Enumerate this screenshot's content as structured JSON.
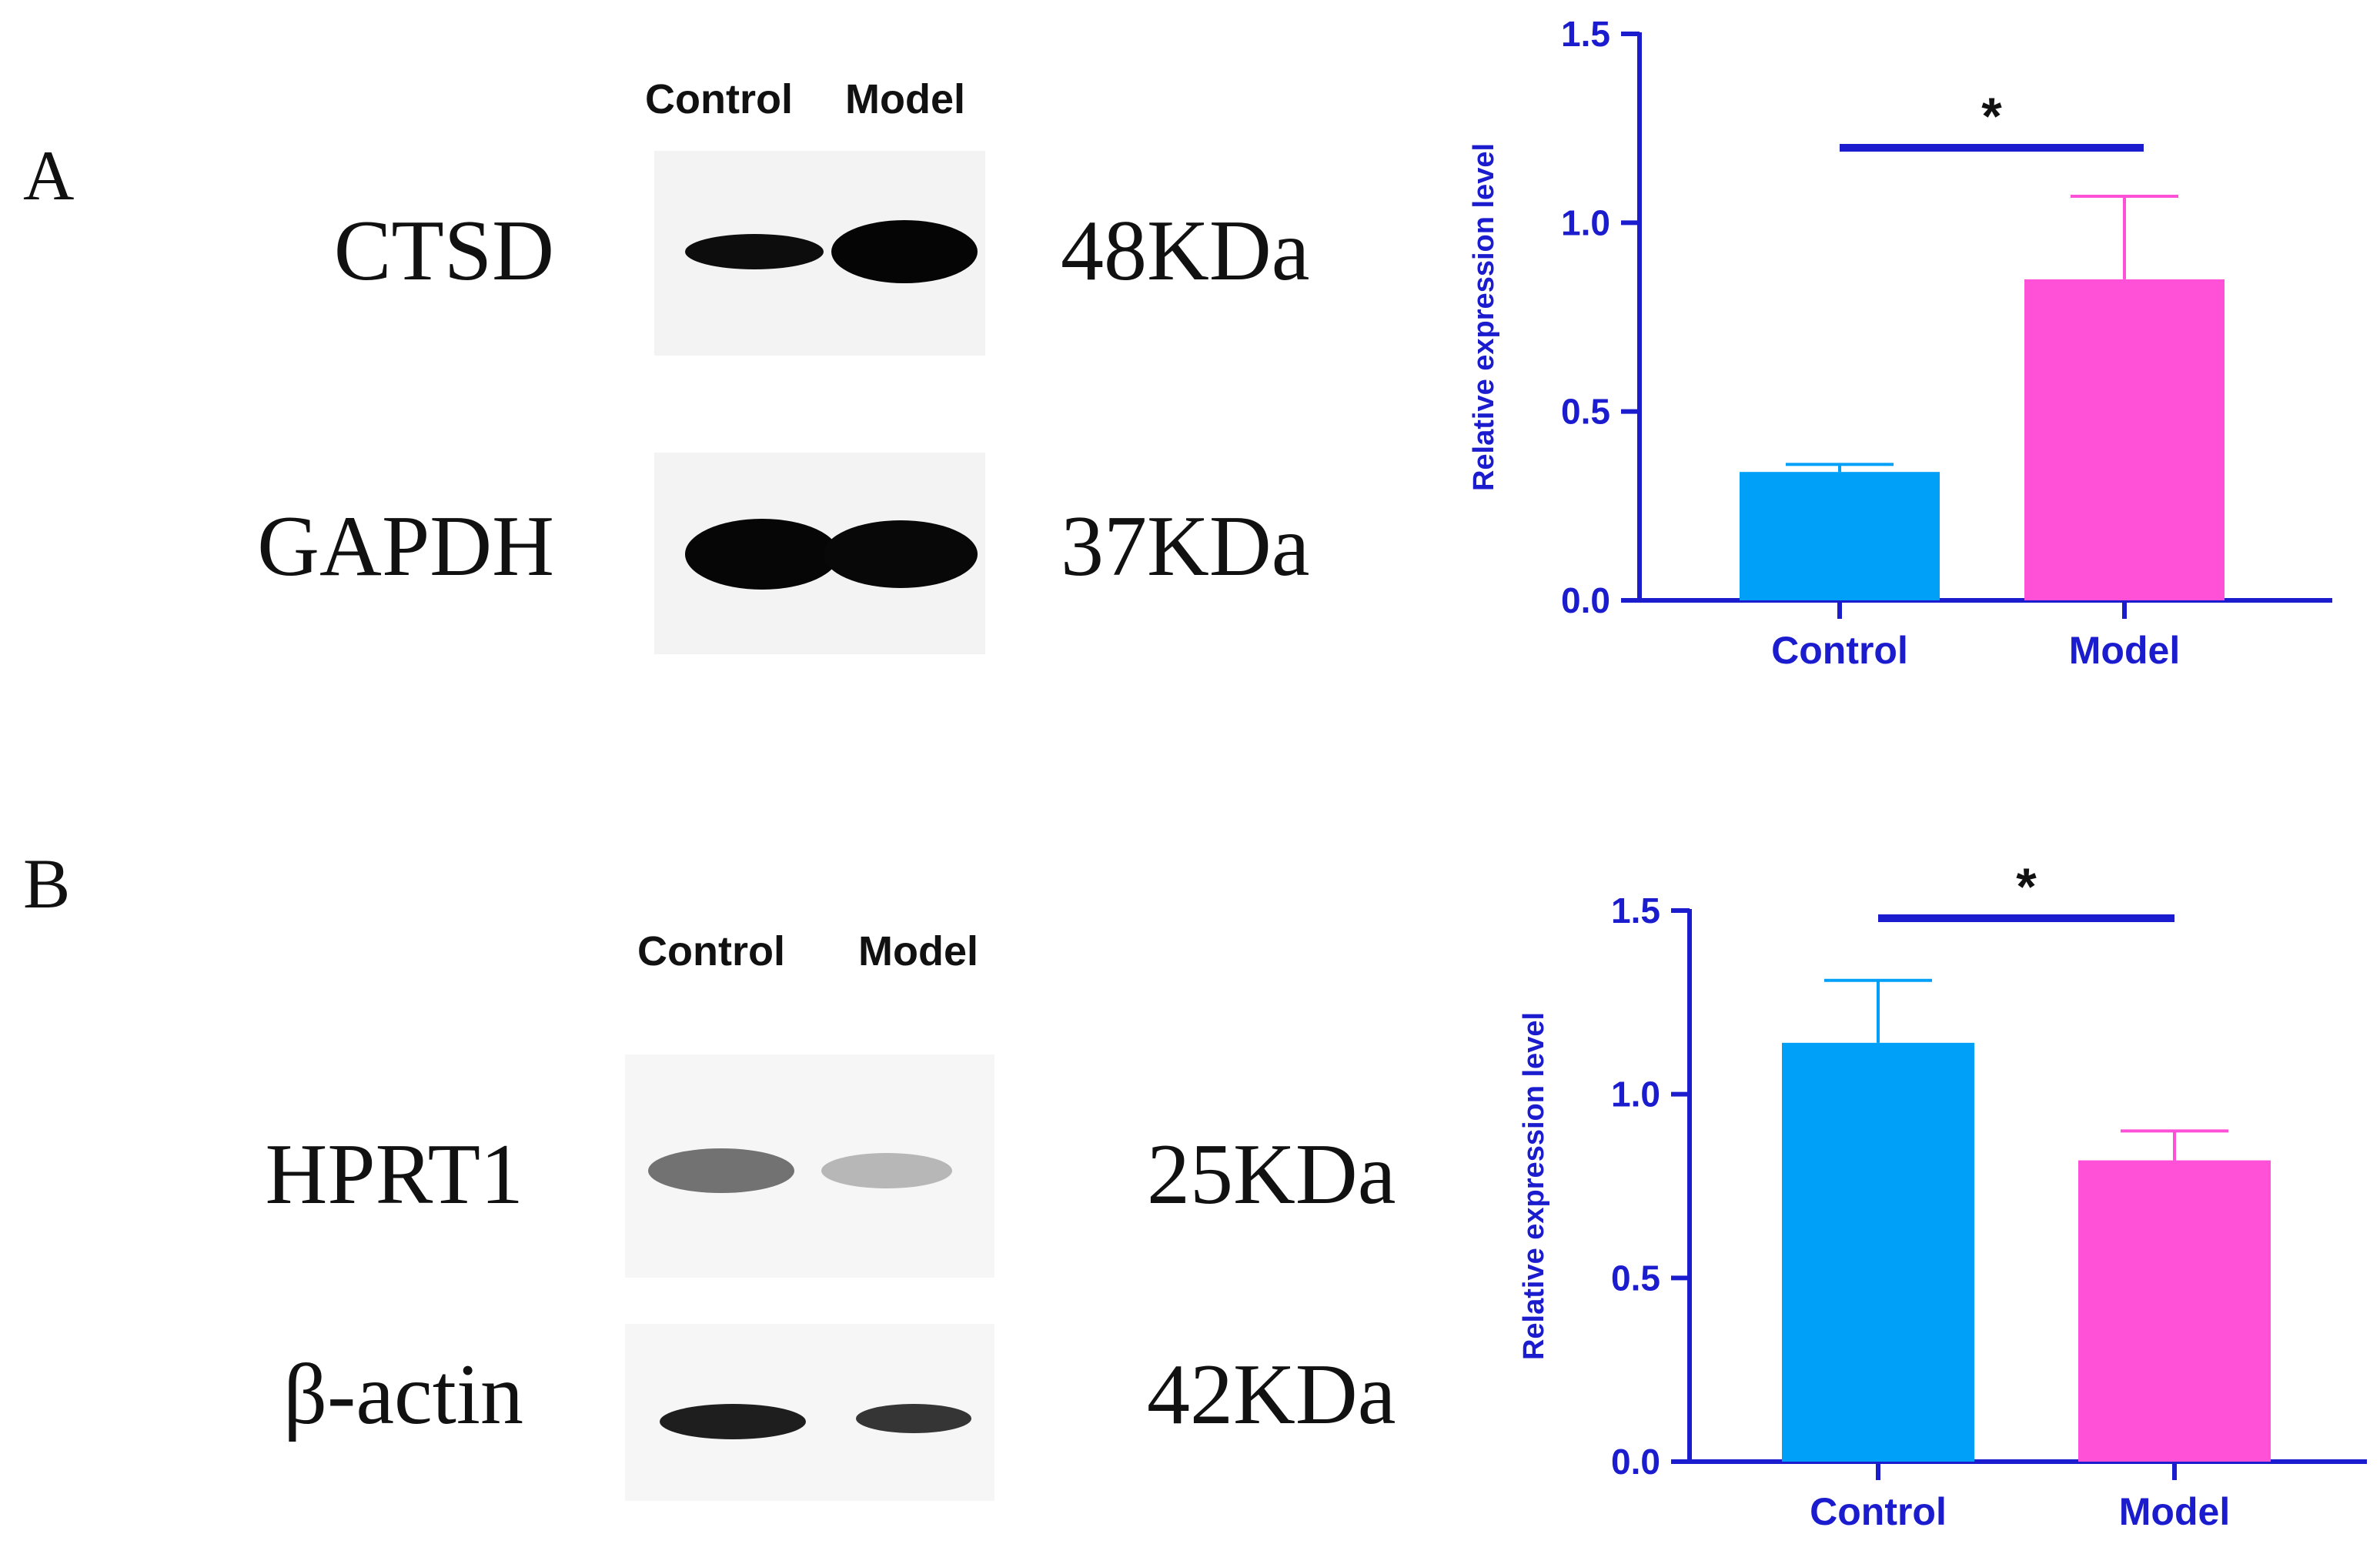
{
  "colors": {
    "axis": "#1c1ccf",
    "control_bar": "#00a0f8",
    "model_bar": "#ff50d8",
    "band": "#0a0a0a"
  },
  "panel_a": {
    "letter": "A",
    "lanes": [
      "Control",
      "Model"
    ],
    "rows": [
      {
        "protein": "CTSD",
        "mw": "48KDa"
      },
      {
        "protein": "GAPDH",
        "mw": "37KDa"
      }
    ]
  },
  "panel_b": {
    "letter": "B",
    "lanes": [
      "Control",
      "Model"
    ],
    "rows": [
      {
        "protein": "HPRT1",
        "mw": "25KDa"
      },
      {
        "protein": "β-actin",
        "mw": "42KDa"
      }
    ]
  },
  "chart_data": [
    {
      "type": "bar",
      "panel": "A",
      "categories": [
        "Control",
        "Model"
      ],
      "values": [
        0.34,
        0.85
      ],
      "errors": [
        0.02,
        0.22
      ],
      "ylabel": "Relative expression level",
      "ylim": [
        0,
        1.5
      ],
      "yticks": [
        0.0,
        0.5,
        1.0,
        1.5
      ],
      "ytick_labels": [
        "0.0",
        "0.5",
        "1.0",
        "1.5"
      ],
      "significance": "*"
    },
    {
      "type": "bar",
      "panel": "B",
      "categories": [
        "Control",
        "Model"
      ],
      "values": [
        1.14,
        0.82
      ],
      "errors": [
        0.17,
        0.08
      ],
      "ylabel": "Relative expression level",
      "ylim": [
        0,
        1.5
      ],
      "yticks": [
        0.0,
        0.5,
        1.0,
        1.5
      ],
      "ytick_labels": [
        "0.0",
        "0.5",
        "1.0",
        "1.5"
      ],
      "significance": "*"
    }
  ]
}
